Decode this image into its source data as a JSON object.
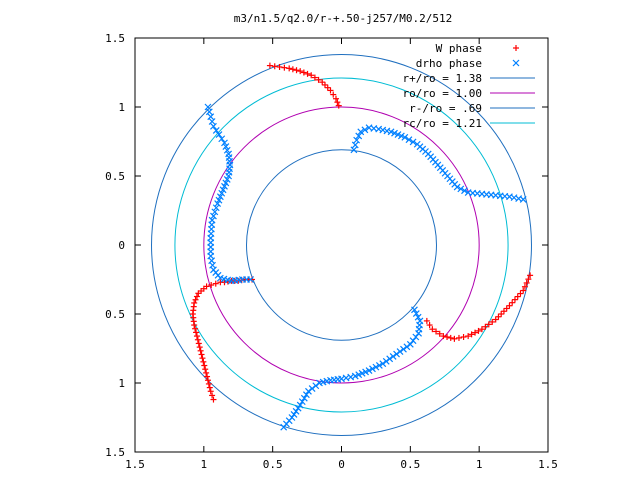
{
  "chart_data": {
    "type": "scatter",
    "title": "m3/n1.5/q2.0/r-+.50-j257/M0.2/512",
    "xlabel": "",
    "ylabel": "",
    "xlim": [
      -1.5,
      1.5
    ],
    "ylim": [
      -1.5,
      1.5
    ],
    "grid": false,
    "legend_position": "top-right",
    "x_ticks": [
      -1.5,
      -1,
      -0.5,
      0,
      0.5,
      1,
      1.5
    ],
    "x_tick_labels": [
      "1.5",
      "1",
      "0.5",
      "0",
      "0.5",
      "1",
      "1.5"
    ],
    "y_ticks": [
      1.5,
      1,
      0.5,
      0,
      -0.5,
      -1,
      -1.5
    ],
    "y_tick_labels": [
      "1.5",
      "1",
      "0.5",
      "0",
      "0.5",
      "1",
      "1.5"
    ],
    "series": [
      {
        "name": "W phase",
        "type": "scatter",
        "marker": "plus",
        "color": "#ff0000",
        "points": [
          [
            -0.52,
            1.3
          ],
          [
            -0.45,
            1.29
          ],
          [
            -0.38,
            1.28
          ],
          [
            -0.3,
            1.26
          ],
          [
            -0.22,
            1.23
          ],
          [
            -0.14,
            1.18
          ],
          [
            -0.08,
            1.12
          ],
          [
            -0.04,
            1.06
          ],
          [
            -0.02,
            1.01
          ],
          [
            1.37,
            -0.22
          ],
          [
            1.32,
            -0.33
          ],
          [
            1.22,
            -0.44
          ],
          [
            1.12,
            -0.54
          ],
          [
            1.02,
            -0.61
          ],
          [
            0.92,
            -0.66
          ],
          [
            0.82,
            -0.68
          ],
          [
            0.74,
            -0.66
          ],
          [
            0.66,
            -0.61
          ],
          [
            0.62,
            -0.55
          ],
          [
            -0.88,
            -0.27
          ],
          [
            -0.98,
            -0.3
          ],
          [
            -1.04,
            -0.35
          ],
          [
            -1.07,
            -0.42
          ],
          [
            -1.08,
            -0.5
          ],
          [
            -1.07,
            -0.58
          ],
          [
            -1.05,
            -0.66
          ],
          [
            -1.03,
            -0.74
          ],
          [
            -1.01,
            -0.82
          ],
          [
            -0.99,
            -0.9
          ],
          [
            -0.97,
            -0.98
          ],
          [
            -0.95,
            -1.06
          ],
          [
            -0.93,
            -1.12
          ],
          [
            -0.85,
            -0.27
          ],
          [
            -0.8,
            -0.26
          ],
          [
            -0.75,
            -0.26
          ],
          [
            -0.7,
            -0.25
          ],
          [
            -0.65,
            -0.25
          ]
        ]
      },
      {
        "name": "drho phase",
        "type": "scatter",
        "marker": "cross",
        "color": "#0080ff",
        "points": [
          [
            -0.97,
            1.0
          ],
          [
            -0.95,
            0.93
          ],
          [
            -0.93,
            0.86
          ],
          [
            -0.89,
            0.8
          ],
          [
            -0.85,
            0.74
          ],
          [
            -0.82,
            0.66
          ],
          [
            -0.81,
            0.58
          ],
          [
            -0.82,
            0.5
          ],
          [
            -0.86,
            0.4
          ],
          [
            -0.9,
            0.3
          ],
          [
            -0.94,
            0.18
          ],
          [
            -0.95,
            0.05
          ],
          [
            -0.95,
            -0.08
          ],
          [
            -0.93,
            -0.18
          ],
          [
            -0.88,
            -0.24
          ],
          [
            -0.8,
            -0.26
          ],
          [
            -0.72,
            -0.25
          ],
          [
            -0.66,
            -0.25
          ],
          [
            0.09,
            0.69
          ],
          [
            0.11,
            0.76
          ],
          [
            0.14,
            0.82
          ],
          [
            0.2,
            0.85
          ],
          [
            0.27,
            0.84
          ],
          [
            0.36,
            0.82
          ],
          [
            0.46,
            0.78
          ],
          [
            0.55,
            0.73
          ],
          [
            0.63,
            0.66
          ],
          [
            0.7,
            0.58
          ],
          [
            0.77,
            0.5
          ],
          [
            0.84,
            0.42
          ],
          [
            0.92,
            0.38
          ],
          [
            1.02,
            0.37
          ],
          [
            1.12,
            0.36
          ],
          [
            1.22,
            0.35
          ],
          [
            1.32,
            0.33
          ],
          [
            -0.42,
            -1.32
          ],
          [
            -0.36,
            -1.25
          ],
          [
            -0.3,
            -1.16
          ],
          [
            -0.24,
            -1.06
          ],
          [
            -0.16,
            -1.0
          ],
          [
            -0.08,
            -0.98
          ],
          [
            0.0,
            -0.97
          ],
          [
            0.1,
            -0.95
          ],
          [
            0.2,
            -0.91
          ],
          [
            0.3,
            -0.86
          ],
          [
            0.4,
            -0.79
          ],
          [
            0.5,
            -0.72
          ],
          [
            0.56,
            -0.64
          ],
          [
            0.57,
            -0.55
          ],
          [
            0.53,
            -0.47
          ]
        ]
      },
      {
        "name": "r+/ro = 1.38",
        "type": "circle",
        "radius": 1.38,
        "color": "#1f6fbf"
      },
      {
        "name": "ro/ro = 1.00",
        "type": "circle",
        "radius": 1.0,
        "color": "#b000b0"
      },
      {
        "name": "r-/ro = .69",
        "type": "circle",
        "radius": 0.69,
        "color": "#1f6fbf"
      },
      {
        "name": "rc/ro = 1.21",
        "type": "circle",
        "radius": 1.21,
        "color": "#00bcd4"
      }
    ]
  }
}
